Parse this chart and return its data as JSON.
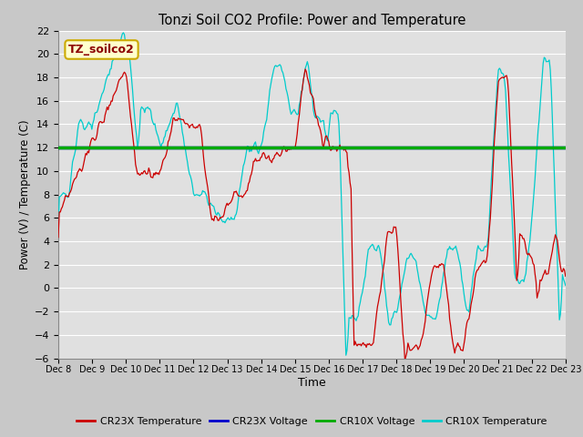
{
  "title": "Tonzi Soil CO2 Profile: Power and Temperature",
  "xlabel": "Time",
  "ylabel": "Power (V) / Temperature (C)",
  "ylim": [
    -6,
    22
  ],
  "yticks": [
    -6,
    -4,
    -2,
    0,
    2,
    4,
    6,
    8,
    10,
    12,
    14,
    16,
    18,
    20,
    22
  ],
  "fig_bg_color": "#c8c8c8",
  "plot_bg_color": "#e0e0e0",
  "grid_color": "#ffffff",
  "cr23x_temp_color": "#cc0000",
  "cr23x_volt_color": "#0000cc",
  "cr10x_volt_color": "#00aa00",
  "cr10x_temp_color": "#00cccc",
  "annotation_text": "TZ_soilco2",
  "annotation_bg": "#ffffcc",
  "annotation_border": "#ccaa00",
  "x_tick_labels": [
    "Dec 8",
    "Dec 9",
    "Dec 10",
    "Dec 11",
    "Dec 12",
    "Dec 13",
    "Dec 14",
    "Dec 15",
    "Dec 16",
    "Dec 17",
    "Dec 18",
    "Dec 19",
    "Dec 20",
    "Dec 21",
    "Dec 22",
    "Dec 23"
  ],
  "legend_labels": [
    "CR23X Temperature",
    "CR23X Voltage",
    "CR10X Voltage",
    "CR10X Temperature"
  ]
}
